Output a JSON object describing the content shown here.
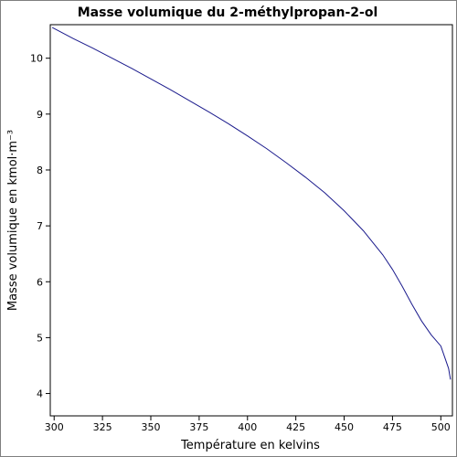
{
  "chart_data": {
    "type": "line",
    "title": "Masse volumique du 2-méthylpropan-2-ol",
    "xlabel": "Température en kelvins",
    "ylabel": "Masse volumique en kmol·m⁻³",
    "xlim": [
      298,
      506
    ],
    "ylim": [
      3.6,
      10.6
    ],
    "x_ticks": [
      300,
      325,
      350,
      375,
      400,
      425,
      450,
      475,
      500
    ],
    "y_ticks": [
      4,
      5,
      6,
      7,
      8,
      9,
      10
    ],
    "grid": false,
    "series": [
      {
        "color": "#1a1a8c",
        "x": [
          299,
          310,
          320,
          330,
          340,
          350,
          360,
          370,
          380,
          390,
          400,
          410,
          420,
          430,
          440,
          450,
          460,
          470,
          475,
          480,
          485,
          490,
          495,
          500,
          502,
          504,
          505
        ],
        "y": [
          10.55,
          10.35,
          10.18,
          10.0,
          9.82,
          9.63,
          9.44,
          9.24,
          9.04,
          8.83,
          8.61,
          8.38,
          8.13,
          7.87,
          7.59,
          7.27,
          6.91,
          6.48,
          6.22,
          5.92,
          5.6,
          5.3,
          5.05,
          4.85,
          4.65,
          4.45,
          4.25
        ]
      }
    ]
  }
}
